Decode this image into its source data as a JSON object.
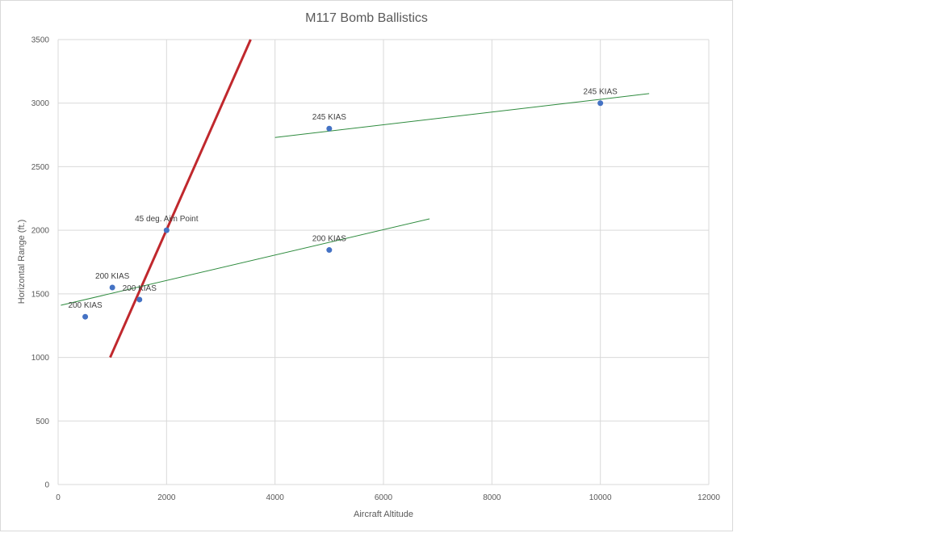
{
  "chart_data": {
    "type": "scatter",
    "title": "M117 Bomb Ballistics",
    "xlabel": "Aircraft Altitude",
    "ylabel": "Horizontal Range (ft.)",
    "xlim": [
      0,
      12000
    ],
    "ylim": [
      0,
      3500
    ],
    "x_ticks": [
      0,
      2000,
      4000,
      6000,
      8000,
      10000,
      12000
    ],
    "y_ticks": [
      0,
      500,
      1000,
      1500,
      2000,
      2500,
      3000,
      3500
    ],
    "grid": true,
    "legend": "none",
    "points": [
      {
        "x": 500,
        "y": 1320,
        "label": "200 KIAS"
      },
      {
        "x": 1000,
        "y": 1550,
        "label": "200 KIAS"
      },
      {
        "x": 1500,
        "y": 1455,
        "label": "200 KIAS"
      },
      {
        "x": 2000,
        "y": 2000,
        "label": "45 deg. Aim Point"
      },
      {
        "x": 5000,
        "y": 1845,
        "label": "200 KIAS"
      },
      {
        "x": 5000,
        "y": 2800,
        "label": "245 KIAS"
      },
      {
        "x": 10000,
        "y": 3000,
        "label": "245 KIAS"
      }
    ],
    "point_color": "#4472c4",
    "lines": [
      {
        "from": [
          960,
          1000
        ],
        "to": [
          3550,
          3500
        ],
        "color": "#c0282d",
        "width": 3
      },
      {
        "from": [
          50,
          1410
        ],
        "to": [
          6850,
          2090
        ],
        "color": "#2e8b3e",
        "width": 1
      },
      {
        "from": [
          4000,
          2730
        ],
        "to": [
          10900,
          3075
        ],
        "color": "#2e8b3e",
        "width": 1
      }
    ]
  }
}
